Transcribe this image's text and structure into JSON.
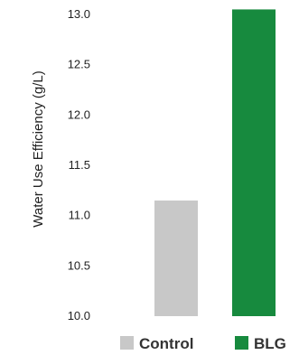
{
  "chart_data": {
    "type": "bar",
    "title": "",
    "xlabel": "",
    "ylabel": "Water Use Efficiency (g/L)",
    "ylim": [
      10.0,
      13.0
    ],
    "yticks": [
      "10.0",
      "10.5",
      "11.0",
      "11.5",
      "12.0",
      "12.5",
      "13.0"
    ],
    "yticks_values": [
      10.0,
      10.5,
      11.0,
      11.5,
      12.0,
      12.5,
      13.0
    ],
    "grid": false,
    "legend": {
      "placement": "bottom"
    },
    "series": [
      {
        "name": "Control",
        "value": 11.15,
        "color": "#c8c8c8"
      },
      {
        "name": "BLG",
        "value": 13.05,
        "color": "#178a3e"
      }
    ]
  }
}
